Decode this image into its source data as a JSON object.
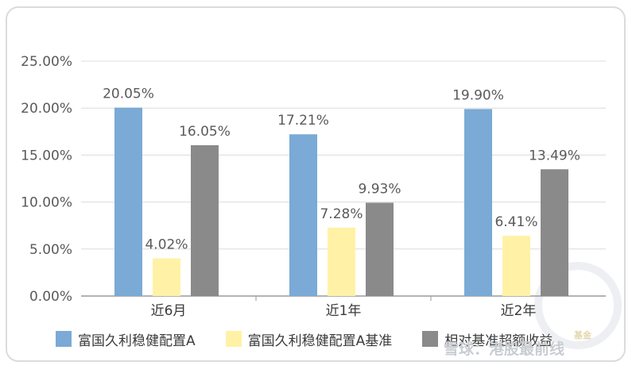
{
  "chart_data": {
    "type": "bar",
    "categories": [
      "近6月",
      "近1年",
      "近2年"
    ],
    "series": [
      {
        "name": "富国久利稳健配置A",
        "color": "#7aaad5",
        "values": [
          20.05,
          17.21,
          19.9
        ],
        "labels": [
          "20.05%",
          "17.21%",
          "19.90%"
        ]
      },
      {
        "name": "富国久利稳健配置A基准",
        "color": "#fff2a6",
        "values": [
          4.02,
          7.28,
          6.41
        ],
        "labels": [
          "4.02%",
          "7.28%",
          "6.41%"
        ]
      },
      {
        "name": "相对基准超额收益",
        "color": "#8a8a8a",
        "values": [
          16.05,
          9.93,
          13.49
        ],
        "labels": [
          "16.05%",
          "9.93%",
          "13.49%"
        ]
      }
    ],
    "yticks": [
      "0.00%",
      "5.00%",
      "10.00%",
      "15.00%",
      "20.00%",
      "25.00%"
    ],
    "ylim": [
      0,
      25
    ],
    "grid": true,
    "legend_position": "bottom"
  },
  "watermark": {
    "text": "雪球：港股最前线",
    "sub": "基金"
  }
}
